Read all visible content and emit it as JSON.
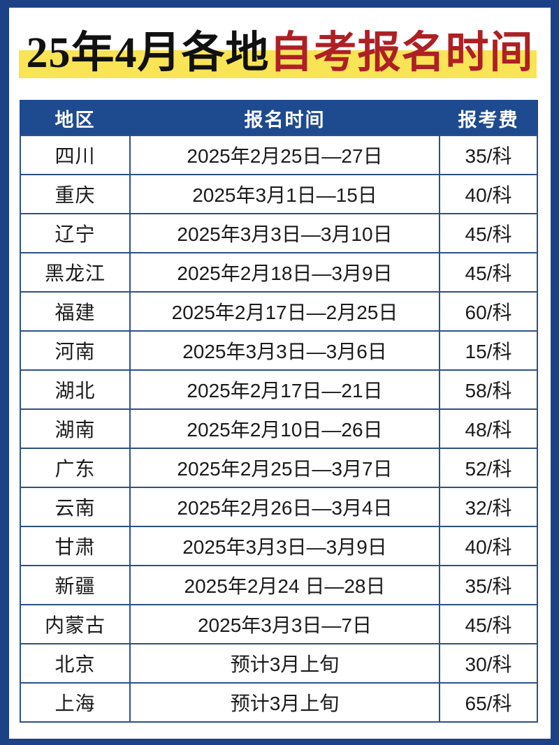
{
  "title": {
    "black_part": "25年4月各地",
    "red_part": "自考报名时间"
  },
  "table": {
    "headers": [
      "地区",
      "报名时间",
      "报考费"
    ],
    "rows": [
      [
        "四川",
        "2025年2月25日—27日",
        "35/科"
      ],
      [
        "重庆",
        "2025年3月1日—15日",
        "40/科"
      ],
      [
        "辽宁",
        "2025年3月3日—3月10日",
        "45/科"
      ],
      [
        "黑龙江",
        "2025年2月18日—3月9日",
        "45/科"
      ],
      [
        "福建",
        "2025年2月17日—2月25日",
        "60/科"
      ],
      [
        "河南",
        "2025年3月3日—3月6日",
        "15/科"
      ],
      [
        "湖北",
        "2025年2月17日—21日",
        "58/科"
      ],
      [
        "湖南",
        "2025年2月10日—26日",
        "48/科"
      ],
      [
        "广东",
        "2025年2月25日—3月7日",
        "52/科"
      ],
      [
        "云南",
        "2025年2月26日—3月4日",
        "32/科"
      ],
      [
        "甘肃",
        "2025年3月3日—3月9日",
        "40/科"
      ],
      [
        "新疆",
        "2025年2月24 日—28日",
        "35/科"
      ],
      [
        "内蒙古",
        "2025年3月3日—7日",
        "45/科"
      ],
      [
        "北京",
        "预计3月上旬",
        "30/科"
      ],
      [
        "上海",
        "预计3月上旬",
        "65/科"
      ]
    ]
  },
  "colors": {
    "frame_blue": "#1c4187",
    "header_blue": "#1e4a8f",
    "grid_blue": "#2d5186",
    "highlight_yellow": "#f8e455",
    "title_red": "#ad2024",
    "title_black": "#111111"
  }
}
